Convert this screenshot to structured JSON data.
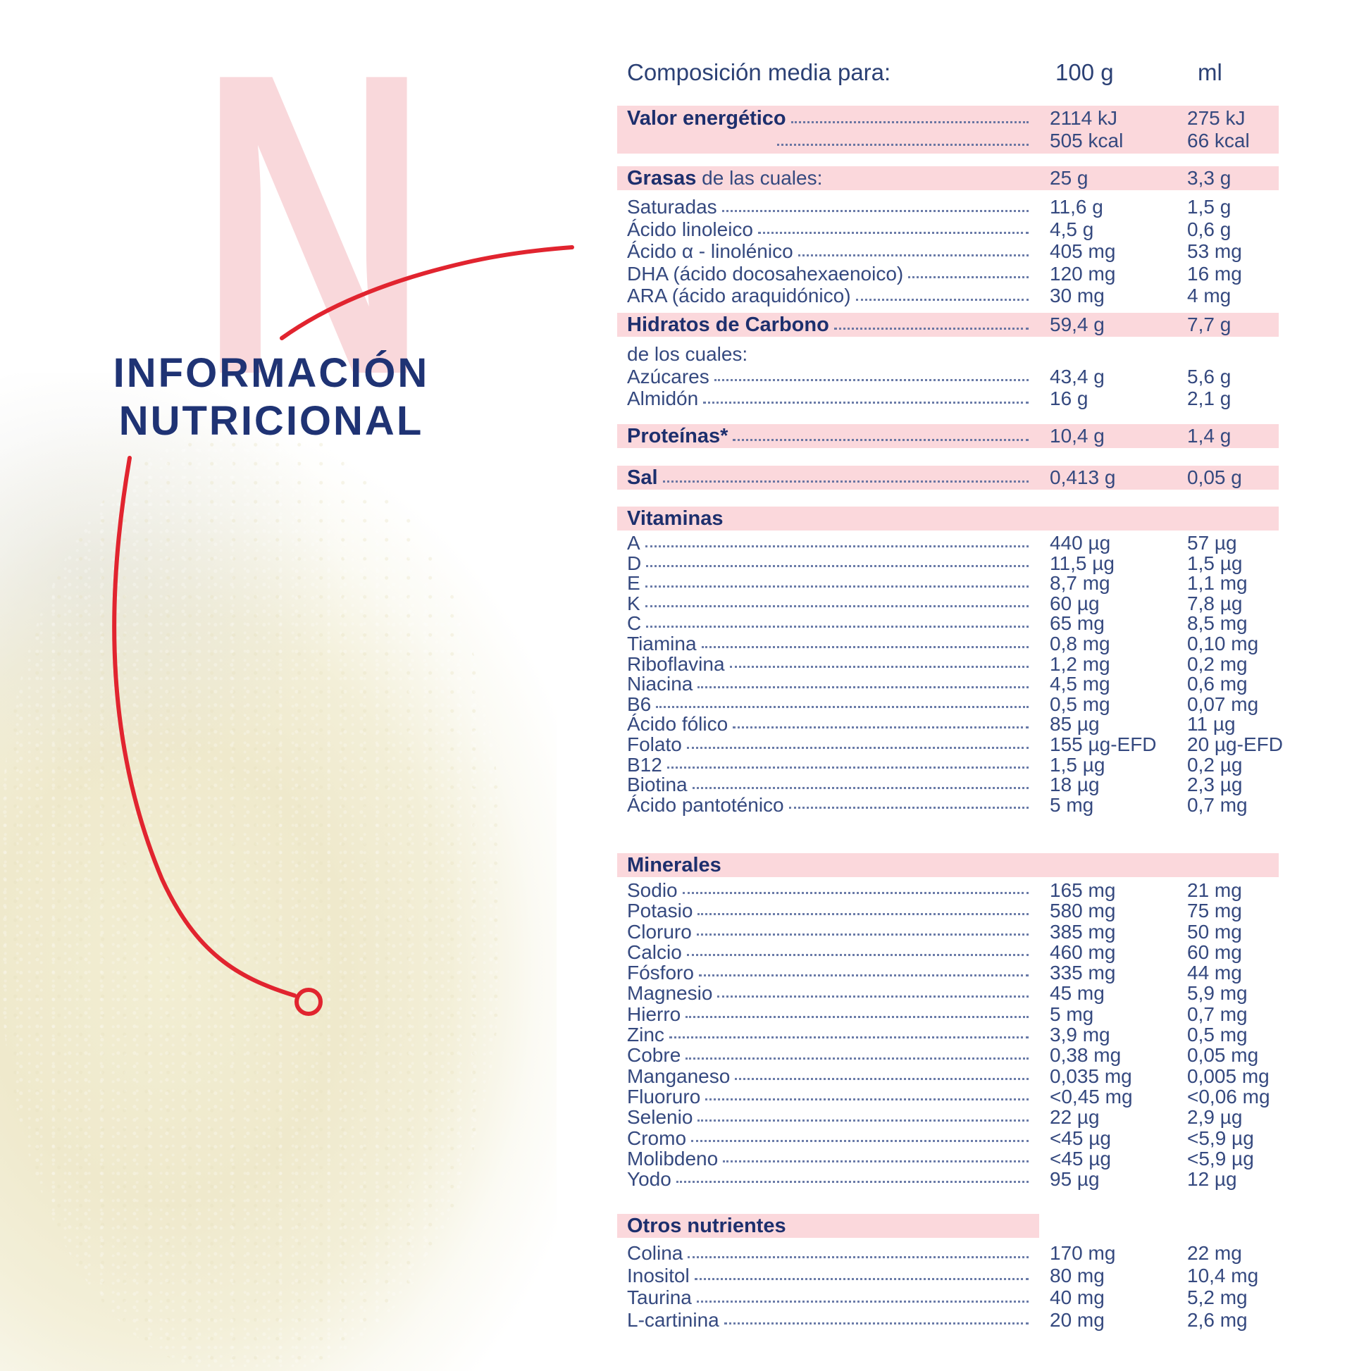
{
  "artwork": {
    "big_letter": "N",
    "title_line1": "INFORMACIÓN",
    "title_line2": "NUTRICIONAL"
  },
  "colors": {
    "navy_bold": "#1d2f6d",
    "navy_text": "#35497f",
    "pink_bar": "#fbd8dc",
    "pink_letter": "#f9d8db",
    "red_line": "#e1242f"
  },
  "table": {
    "header": {
      "label": "Composición media para:",
      "col_100g": "100 g",
      "col_ml": "ml"
    },
    "sections": [
      {
        "id": "energia",
        "bar_rows": [
          {
            "b": "Valor energético",
            "dots": true,
            "v1": "2114 kJ",
            "v2": "275 kJ"
          },
          {
            "b": "",
            "dots": true,
            "v1": "505 kcal",
            "v2": "66 kcal"
          }
        ],
        "rows": []
      },
      {
        "id": "grasas",
        "bar_rows": [
          {
            "b": "Grasas",
            "r": " de las cuales:",
            "dots": false,
            "v1": "25 g",
            "v2": "3,3 g"
          }
        ],
        "rows": [
          {
            "label": "Saturadas",
            "dots": true,
            "v1": "11,6 g",
            "v2": "1,5 g"
          },
          {
            "label": "Ácido linoleico",
            "dots": true,
            "v1": "4,5 g",
            "v2": "0,6 g"
          },
          {
            "label": "Ácido α - linolénico",
            "dots": true,
            "v1": "405 mg",
            "v2": "53 mg"
          },
          {
            "label": "DHA (ácido docosahexaenoico)",
            "dots": true,
            "v1": "120 mg",
            "v2": "16 mg"
          },
          {
            "label": "ARA (ácido araquidónico)",
            "dots": true,
            "v1": "30 mg",
            "v2": "4 mg"
          }
        ]
      },
      {
        "id": "hidratos",
        "bar_rows": [
          {
            "b": "Hidratos de Carbono",
            "dots": true,
            "v1": "59,4 g",
            "v2": "7,7 g"
          }
        ],
        "rows": [
          {
            "label": "de los cuales:",
            "dots": false,
            "v1": "",
            "v2": ""
          },
          {
            "label": "Azúcares",
            "dots": true,
            "v1": "43,4 g",
            "v2": "5,6 g"
          },
          {
            "label": "Almidón",
            "dots": true,
            "v1": "16 g",
            "v2": "2,1 g"
          }
        ]
      },
      {
        "id": "proteinas",
        "bar_rows": [
          {
            "b": "Proteínas*",
            "dots": true,
            "v1": "10,4 g",
            "v2": "1,4 g"
          }
        ],
        "rows": []
      },
      {
        "id": "sal",
        "bar_rows": [
          {
            "b": "Sal",
            "dots": true,
            "v1": "0,413 g",
            "v2": "0,05 g"
          }
        ],
        "rows": []
      },
      {
        "id": "vitaminas",
        "bar_rows": [
          {
            "b": "Vitaminas"
          }
        ],
        "rows": [
          {
            "label": "A",
            "dots": true,
            "v1": "440 µg",
            "v2": "57 µg"
          },
          {
            "label": "D",
            "dots": true,
            "v1": "11,5 µg",
            "v2": "1,5 µg"
          },
          {
            "label": "E",
            "dots": true,
            "v1": "8,7 mg",
            "v2": "1,1 mg"
          },
          {
            "label": "K",
            "dots": true,
            "v1": "60 µg",
            "v2": "7,8 µg"
          },
          {
            "label": "C",
            "dots": true,
            "v1": "65 mg",
            "v2": "8,5 mg"
          },
          {
            "label": "Tiamina",
            "dots": true,
            "v1": "0,8 mg",
            "v2": "0,10 mg"
          },
          {
            "label": "Riboflavina",
            "dots": true,
            "v1": "1,2 mg",
            "v2": "0,2 mg"
          },
          {
            "label": "Niacina",
            "dots": true,
            "v1": "4,5 mg",
            "v2": "0,6 mg"
          },
          {
            "label": "B6",
            "dots": true,
            "v1": "0,5 mg",
            "v2": "0,07 mg"
          },
          {
            "label": "Ácido fólico",
            "dots": true,
            "v1": "85 µg",
            "v2": "11 µg"
          },
          {
            "label": "Folato",
            "dots": true,
            "v1": "155 µg-EFD",
            "v2": "20 µg-EFD"
          },
          {
            "label": "B12",
            "dots": true,
            "v1": "1,5 µg",
            "v2": "0,2 µg"
          },
          {
            "label": "Biotina",
            "dots": true,
            "v1": "18 µg",
            "v2": "2,3 µg"
          },
          {
            "label": "Ácido pantoténico",
            "dots": true,
            "v1": "5 mg",
            "v2": "0,7 mg"
          }
        ]
      },
      {
        "id": "minerales",
        "bar_rows": [
          {
            "b": "Minerales"
          }
        ],
        "rows": [
          {
            "label": "Sodio",
            "dots": true,
            "v1": "165 mg",
            "v2": "21 mg"
          },
          {
            "label": "Potasio",
            "dots": true,
            "v1": "580 mg",
            "v2": "75 mg"
          },
          {
            "label": "Cloruro",
            "dots": true,
            "v1": "385 mg",
            "v2": "50 mg"
          },
          {
            "label": "Calcio",
            "dots": true,
            "v1": "460 mg",
            "v2": "60 mg"
          },
          {
            "label": "Fósforo",
            "dots": true,
            "v1": "335 mg",
            "v2": "44 mg"
          },
          {
            "label": "Magnesio",
            "dots": true,
            "v1": "45 mg",
            "v2": "5,9 mg"
          },
          {
            "label": "Hierro",
            "dots": true,
            "v1": "5 mg",
            "v2": "0,7 mg"
          },
          {
            "label": "Zinc",
            "dots": true,
            "v1": "3,9 mg",
            "v2": "0,5 mg"
          },
          {
            "label": "Cobre",
            "dots": true,
            "v1": "0,38 mg",
            "v2": "0,05 mg"
          },
          {
            "label": "Manganeso",
            "dots": true,
            "v1": "0,035 mg",
            "v2": "0,005 mg"
          },
          {
            "label": "Fluoruro",
            "dots": true,
            "v1": "<0,45 mg",
            "v2": "<0,06 mg"
          },
          {
            "label": "Selenio",
            "dots": true,
            "v1": "22 µg",
            "v2": "2,9 µg"
          },
          {
            "label": "Cromo",
            "dots": true,
            "v1": "<45 µg",
            "v2": "<5,9 µg"
          },
          {
            "label": "Molibdeno",
            "dots": true,
            "v1": "<45 µg",
            "v2": "<5,9 µg"
          },
          {
            "label": "Yodo",
            "dots": true,
            "v1": "95 µg",
            "v2": "12 µg"
          }
        ]
      },
      {
        "id": "otros",
        "bar_short": true,
        "bar_rows": [
          {
            "b": "Otros nutrientes"
          }
        ],
        "rows": [
          {
            "label": "Colina",
            "dots": true,
            "v1": "170 mg",
            "v2": "22 mg"
          },
          {
            "label": "Inositol",
            "dots": true,
            "v1": "80 mg",
            "v2": "10,4 mg"
          },
          {
            "label": "Taurina",
            "dots": true,
            "v1": "40 mg",
            "v2": "5,2 mg"
          },
          {
            "label": "L-cartinina",
            "dots": true,
            "v1": "20 mg",
            "v2": "2,6 mg"
          }
        ]
      }
    ]
  }
}
